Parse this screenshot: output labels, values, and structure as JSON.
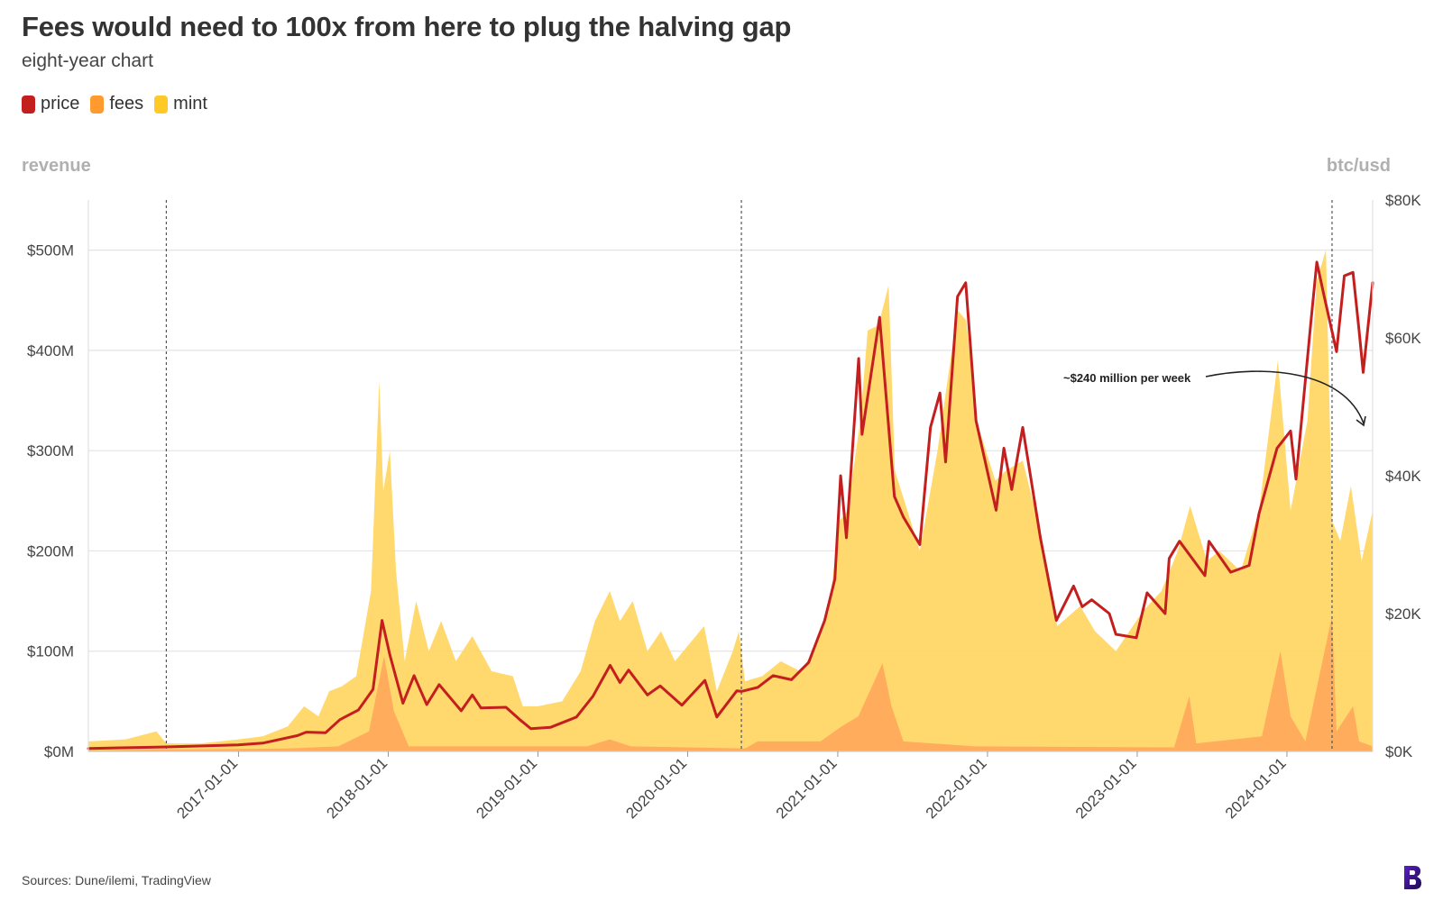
{
  "title": "Fees would need to 100x from here to plug the halving gap",
  "subtitle": "eight-year chart",
  "legend": [
    {
      "label": "price",
      "color": "#c41f1f"
    },
    {
      "label": "fees",
      "color": "#ff9a2e"
    },
    {
      "label": "mint",
      "color": "#ffc928"
    }
  ],
  "axis_titles": {
    "left": "revenue",
    "right": "btc/usd"
  },
  "source": "Sources: Dune/ilemi, TradingView",
  "annotation": "~$240 million per week",
  "chart_data": {
    "type": "area",
    "title": "Fees would need to 100x from here to plug the halving gap",
    "subtitle": "eight-year chart",
    "x_range": [
      "2016-01-01",
      "2024-07-28"
    ],
    "x_ticks": [
      "2017-01-01",
      "2018-01-01",
      "2019-01-01",
      "2020-01-01",
      "2021-01-01",
      "2022-01-01",
      "2023-01-01",
      "2024-01-01"
    ],
    "y_left": {
      "label": "revenue",
      "ylim": [
        0,
        550
      ],
      "unit": "USD million",
      "ticks": [
        0,
        100,
        200,
        300,
        400,
        500
      ],
      "tick_labels": [
        "$0M",
        "$100M",
        "$200M",
        "$300M",
        "$400M",
        "$500M"
      ]
    },
    "y_right": {
      "label": "btc/usd",
      "ylim": [
        0,
        80000
      ],
      "ticks": [
        0,
        20000,
        40000,
        60000,
        80000
      ],
      "tick_labels": [
        "$0K",
        "$20K",
        "$40K",
        "$60K",
        "$80K"
      ]
    },
    "halving_dates": [
      "2016-07-09",
      "2020-05-11",
      "2024-04-20"
    ],
    "series": [
      {
        "name": "mint",
        "axis": "left",
        "color": "#ffc928",
        "points": [
          [
            "2016-01-01",
            10
          ],
          [
            "2016-04-01",
            12
          ],
          [
            "2016-06-15",
            20
          ],
          [
            "2016-07-09",
            8
          ],
          [
            "2016-10-01",
            8
          ],
          [
            "2017-01-01",
            12
          ],
          [
            "2017-03-01",
            15
          ],
          [
            "2017-05-01",
            25
          ],
          [
            "2017-06-10",
            45
          ],
          [
            "2017-07-15",
            35
          ],
          [
            "2017-08-10",
            60
          ],
          [
            "2017-09-10",
            65
          ],
          [
            "2017-10-15",
            75
          ],
          [
            "2017-11-20",
            160
          ],
          [
            "2017-12-10",
            370
          ],
          [
            "2017-12-20",
            260
          ],
          [
            "2018-01-05",
            300
          ],
          [
            "2018-01-20",
            180
          ],
          [
            "2018-02-10",
            90
          ],
          [
            "2018-03-10",
            150
          ],
          [
            "2018-04-10",
            100
          ],
          [
            "2018-05-10",
            130
          ],
          [
            "2018-06-15",
            90
          ],
          [
            "2018-07-25",
            115
          ],
          [
            "2018-09-10",
            80
          ],
          [
            "2018-11-01",
            75
          ],
          [
            "2018-11-25",
            45
          ],
          [
            "2019-01-01",
            45
          ],
          [
            "2019-03-01",
            50
          ],
          [
            "2019-04-15",
            80
          ],
          [
            "2019-05-20",
            130
          ],
          [
            "2019-06-25",
            160
          ],
          [
            "2019-07-20",
            130
          ],
          [
            "2019-08-20",
            150
          ],
          [
            "2019-09-25",
            100
          ],
          [
            "2019-10-28",
            120
          ],
          [
            "2019-12-01",
            90
          ],
          [
            "2020-02-10",
            125
          ],
          [
            "2020-03-12",
            60
          ],
          [
            "2020-04-20",
            100
          ],
          [
            "2020-05-05",
            120
          ],
          [
            "2020-05-20",
            70
          ],
          [
            "2020-07-01",
            75
          ],
          [
            "2020-08-15",
            90
          ],
          [
            "2020-10-01",
            80
          ],
          [
            "2020-11-05",
            100
          ],
          [
            "2020-12-10",
            140
          ],
          [
            "2021-01-05",
            230
          ],
          [
            "2021-01-25",
            240
          ],
          [
            "2021-02-25",
            330
          ],
          [
            "2021-03-15",
            420
          ],
          [
            "2021-04-10",
            425
          ],
          [
            "2021-05-05",
            465
          ],
          [
            "2021-05-20",
            280
          ],
          [
            "2021-06-20",
            240
          ],
          [
            "2021-07-20",
            200
          ],
          [
            "2021-09-01",
            300
          ],
          [
            "2021-10-20",
            440
          ],
          [
            "2021-11-10",
            430
          ],
          [
            "2021-12-05",
            330
          ],
          [
            "2022-01-20",
            270
          ],
          [
            "2022-02-15",
            280
          ],
          [
            "2022-03-28",
            290
          ],
          [
            "2022-05-10",
            220
          ],
          [
            "2022-06-20",
            125
          ],
          [
            "2022-08-15",
            145
          ],
          [
            "2022-09-20",
            120
          ],
          [
            "2022-11-10",
            100
          ],
          [
            "2023-01-15",
            140
          ],
          [
            "2023-03-01",
            160
          ],
          [
            "2023-04-10",
            200
          ],
          [
            "2023-05-10",
            245
          ],
          [
            "2023-06-20",
            190
          ],
          [
            "2023-07-20",
            200
          ],
          [
            "2023-09-10",
            180
          ],
          [
            "2023-10-25",
            240
          ],
          [
            "2023-12-10",
            390
          ],
          [
            "2024-01-10",
            240
          ],
          [
            "2024-02-20",
            330
          ],
          [
            "2024-03-14",
            470
          ],
          [
            "2024-04-05",
            500
          ],
          [
            "2024-04-20",
            230
          ],
          [
            "2024-05-10",
            210
          ],
          [
            "2024-06-05",
            265
          ],
          [
            "2024-07-01",
            190
          ],
          [
            "2024-07-28",
            240
          ]
        ]
      },
      {
        "name": "fees",
        "axis": "left",
        "color": "#ff9a2e",
        "points": [
          [
            "2016-01-01",
            1
          ],
          [
            "2017-05-01",
            3
          ],
          [
            "2017-09-01",
            5
          ],
          [
            "2017-11-15",
            20
          ],
          [
            "2017-12-22",
            95
          ],
          [
            "2018-01-15",
            40
          ],
          [
            "2018-02-20",
            5
          ],
          [
            "2019-05-01",
            5
          ],
          [
            "2019-06-25",
            12
          ],
          [
            "2019-08-15",
            5
          ],
          [
            "2020-05-20",
            3
          ],
          [
            "2020-06-20",
            10
          ],
          [
            "2020-11-20",
            10
          ],
          [
            "2021-01-10",
            25
          ],
          [
            "2021-02-20",
            35
          ],
          [
            "2021-04-20",
            88
          ],
          [
            "2021-05-12",
            45
          ],
          [
            "2021-06-10",
            10
          ],
          [
            "2021-12-01",
            5
          ],
          [
            "2023-04-01",
            4
          ],
          [
            "2023-05-08",
            55
          ],
          [
            "2023-05-25",
            8
          ],
          [
            "2023-11-01",
            15
          ],
          [
            "2023-12-16",
            100
          ],
          [
            "2024-01-10",
            35
          ],
          [
            "2024-02-15",
            10
          ],
          [
            "2024-04-20",
            135
          ],
          [
            "2024-05-01",
            20
          ],
          [
            "2024-06-10",
            45
          ],
          [
            "2024-06-25",
            10
          ],
          [
            "2024-07-28",
            5
          ]
        ]
      },
      {
        "name": "price",
        "axis": "right",
        "color": "#c41f1f",
        "points": [
          [
            "2016-01-01",
            430
          ],
          [
            "2016-06-01",
            600
          ],
          [
            "2016-07-09",
            650
          ],
          [
            "2016-12-31",
            960
          ],
          [
            "2017-03-01",
            1200
          ],
          [
            "2017-05-25",
            2300
          ],
          [
            "2017-06-15",
            2800
          ],
          [
            "2017-08-01",
            2700
          ],
          [
            "2017-09-05",
            4600
          ],
          [
            "2017-10-20",
            6000
          ],
          [
            "2017-11-25",
            9000
          ],
          [
            "2017-12-17",
            19000
          ],
          [
            "2018-01-05",
            14000
          ],
          [
            "2018-02-06",
            7000
          ],
          [
            "2018-03-05",
            11000
          ],
          [
            "2018-04-05",
            6800
          ],
          [
            "2018-05-05",
            9700
          ],
          [
            "2018-06-28",
            5900
          ],
          [
            "2018-07-25",
            8200
          ],
          [
            "2018-08-15",
            6300
          ],
          [
            "2018-10-15",
            6400
          ],
          [
            "2018-11-20",
            4500
          ],
          [
            "2018-12-15",
            3300
          ],
          [
            "2019-02-01",
            3500
          ],
          [
            "2019-04-05",
            5000
          ],
          [
            "2019-05-15",
            8000
          ],
          [
            "2019-06-26",
            12500
          ],
          [
            "2019-07-20",
            10000
          ],
          [
            "2019-08-10",
            11800
          ],
          [
            "2019-09-25",
            8200
          ],
          [
            "2019-10-26",
            9500
          ],
          [
            "2019-12-18",
            6700
          ],
          [
            "2020-02-12",
            10300
          ],
          [
            "2020-03-12",
            5000
          ],
          [
            "2020-04-30",
            8800
          ],
          [
            "2020-05-11",
            8700
          ],
          [
            "2020-06-20",
            9300
          ],
          [
            "2020-07-27",
            11000
          ],
          [
            "2020-09-10",
            10400
          ],
          [
            "2020-10-22",
            12900
          ],
          [
            "2020-11-30",
            19000
          ],
          [
            "2020-12-25",
            25000
          ],
          [
            "2021-01-08",
            40000
          ],
          [
            "2021-01-22",
            31000
          ],
          [
            "2021-02-21",
            57000
          ],
          [
            "2021-03-01",
            46000
          ],
          [
            "2021-04-13",
            63000
          ],
          [
            "2021-05-19",
            37000
          ],
          [
            "2021-06-10",
            34000
          ],
          [
            "2021-07-20",
            30000
          ],
          [
            "2021-08-15",
            47000
          ],
          [
            "2021-09-07",
            52000
          ],
          [
            "2021-09-21",
            42000
          ],
          [
            "2021-10-20",
            66000
          ],
          [
            "2021-11-09",
            68000
          ],
          [
            "2021-12-04",
            48000
          ],
          [
            "2022-01-22",
            35000
          ],
          [
            "2022-02-10",
            44000
          ],
          [
            "2022-03-01",
            38000
          ],
          [
            "2022-03-28",
            47000
          ],
          [
            "2022-05-10",
            31000
          ],
          [
            "2022-06-18",
            19000
          ],
          [
            "2022-07-30",
            24000
          ],
          [
            "2022-08-20",
            21000
          ],
          [
            "2022-09-12",
            22000
          ],
          [
            "2022-10-25",
            20000
          ],
          [
            "2022-11-10",
            17000
          ],
          [
            "2022-12-30",
            16500
          ],
          [
            "2023-01-25",
            23000
          ],
          [
            "2023-03-10",
            20000
          ],
          [
            "2023-03-20",
            28000
          ],
          [
            "2023-04-14",
            30500
          ],
          [
            "2023-06-15",
            25500
          ],
          [
            "2023-06-25",
            30500
          ],
          [
            "2023-08-17",
            26000
          ],
          [
            "2023-10-01",
            27000
          ],
          [
            "2023-10-25",
            34500
          ],
          [
            "2023-12-08",
            44000
          ],
          [
            "2024-01-10",
            46500
          ],
          [
            "2024-01-23",
            39500
          ],
          [
            "2024-02-28",
            62000
          ],
          [
            "2024-03-14",
            71000
          ],
          [
            "2024-04-01",
            66000
          ],
          [
            "2024-05-01",
            58000
          ],
          [
            "2024-05-20",
            69000
          ],
          [
            "2024-06-10",
            69500
          ],
          [
            "2024-06-25",
            61000
          ],
          [
            "2024-07-05",
            55000
          ],
          [
            "2024-07-28",
            68000
          ]
        ]
      }
    ]
  }
}
